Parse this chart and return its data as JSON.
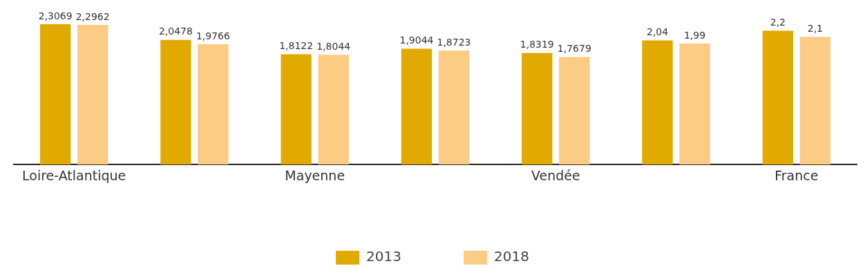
{
  "chart_data": {
    "type": "bar",
    "categories": [
      "Loire-Atlantique",
      null,
      "Mayenne",
      null,
      "Vendée",
      null,
      "France"
    ],
    "series": [
      {
        "name": "2013",
        "color": "#e0aa00",
        "values": [
          2.3069,
          2.0478,
          1.8122,
          1.9044,
          1.8319,
          2.04,
          2.2
        ],
        "value_labels": [
          "2,3069",
          "2,0478",
          "1,8122",
          "1,9044",
          "1,8319",
          "2,04",
          "2,2"
        ]
      },
      {
        "name": "2018",
        "color": "#fccb84",
        "values": [
          2.2962,
          1.9766,
          1.8044,
          1.8723,
          1.7679,
          1.99,
          2.1
        ],
        "value_labels": [
          "2,2962",
          "1,9766",
          "1,8044",
          "1,8723",
          "1,7679",
          "1,99",
          "2,1"
        ]
      }
    ],
    "relative": false,
    "legend": "bottom",
    "grid": false
  }
}
